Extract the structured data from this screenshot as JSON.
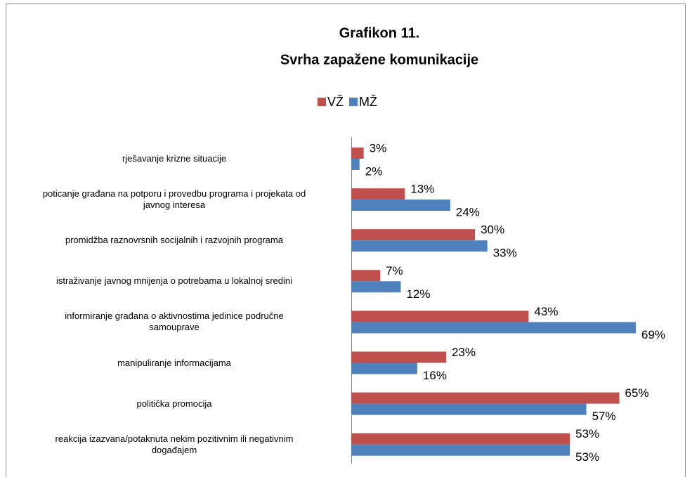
{
  "chart_data": {
    "type": "hbar",
    "title": "Grafikon 11.",
    "subtitle": "Svrha zapažene komunikacije",
    "categories": [
      "rješavanje krizne situacije",
      "poticanje građana na potporu i provedbu programa i projekata od\njavnog interesa",
      "promidžba raznovrsnih socijalnih i razvojnih programa",
      "istraživanje javnog mnijenja o potrebama u lokalnoj sredini",
      "informiranje građana o aktivnostima jedinice područne\nsamouprave",
      "manipuliranje informacijama",
      "politička promocija",
      "reakcija izazvana/potaknuta nekim pozitivnim ili negativnim\ndogađajem"
    ],
    "series": [
      {
        "name": "VŽ",
        "color": "#c0504d",
        "values": [
          3,
          13,
          30,
          7,
          43,
          23,
          65,
          53
        ],
        "value_labels": [
          "3%",
          "13%",
          "30%",
          "7%",
          "43%",
          "23%",
          "65%",
          "53%"
        ]
      },
      {
        "name": "MŽ",
        "color": "#4f81bd",
        "values": [
          2,
          24,
          33,
          12,
          69,
          16,
          57,
          53
        ],
        "value_labels": [
          "2%",
          "24%",
          "33%",
          "12%",
          "69%",
          "16%",
          "57%",
          "53%"
        ]
      }
    ],
    "legend": "top"
  }
}
